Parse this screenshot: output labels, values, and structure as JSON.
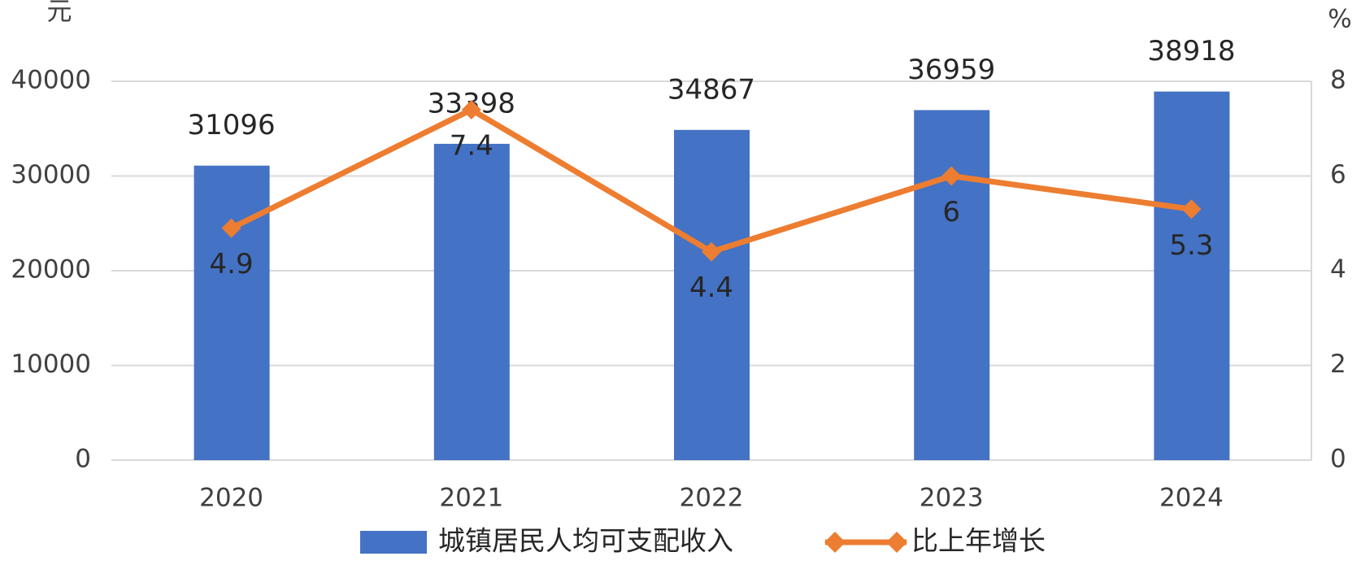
{
  "chart_data": {
    "type": "bar",
    "y_unit": "元",
    "y2_unit": "%",
    "categories": [
      "2020",
      "2021",
      "2022",
      "2023",
      "2024"
    ],
    "series": [
      {
        "name": "城镇居民人均可支配收入",
        "type": "bar",
        "color": "#4472c4",
        "values": [
          31096,
          33398,
          34867,
          36959,
          38918
        ]
      },
      {
        "name": "比上年增长",
        "type": "line",
        "axis": "y2",
        "color": "#ed7d31",
        "values": [
          4.9,
          7.4,
          4.4,
          6,
          5.3
        ]
      }
    ],
    "ylim": [
      0,
      40000
    ],
    "yticks": [
      0,
      10000,
      20000,
      30000,
      40000
    ],
    "y2lim": [
      0,
      8
    ],
    "y2ticks": [
      0,
      2,
      4,
      6,
      8
    ],
    "grid": true,
    "legend": "bottom"
  }
}
